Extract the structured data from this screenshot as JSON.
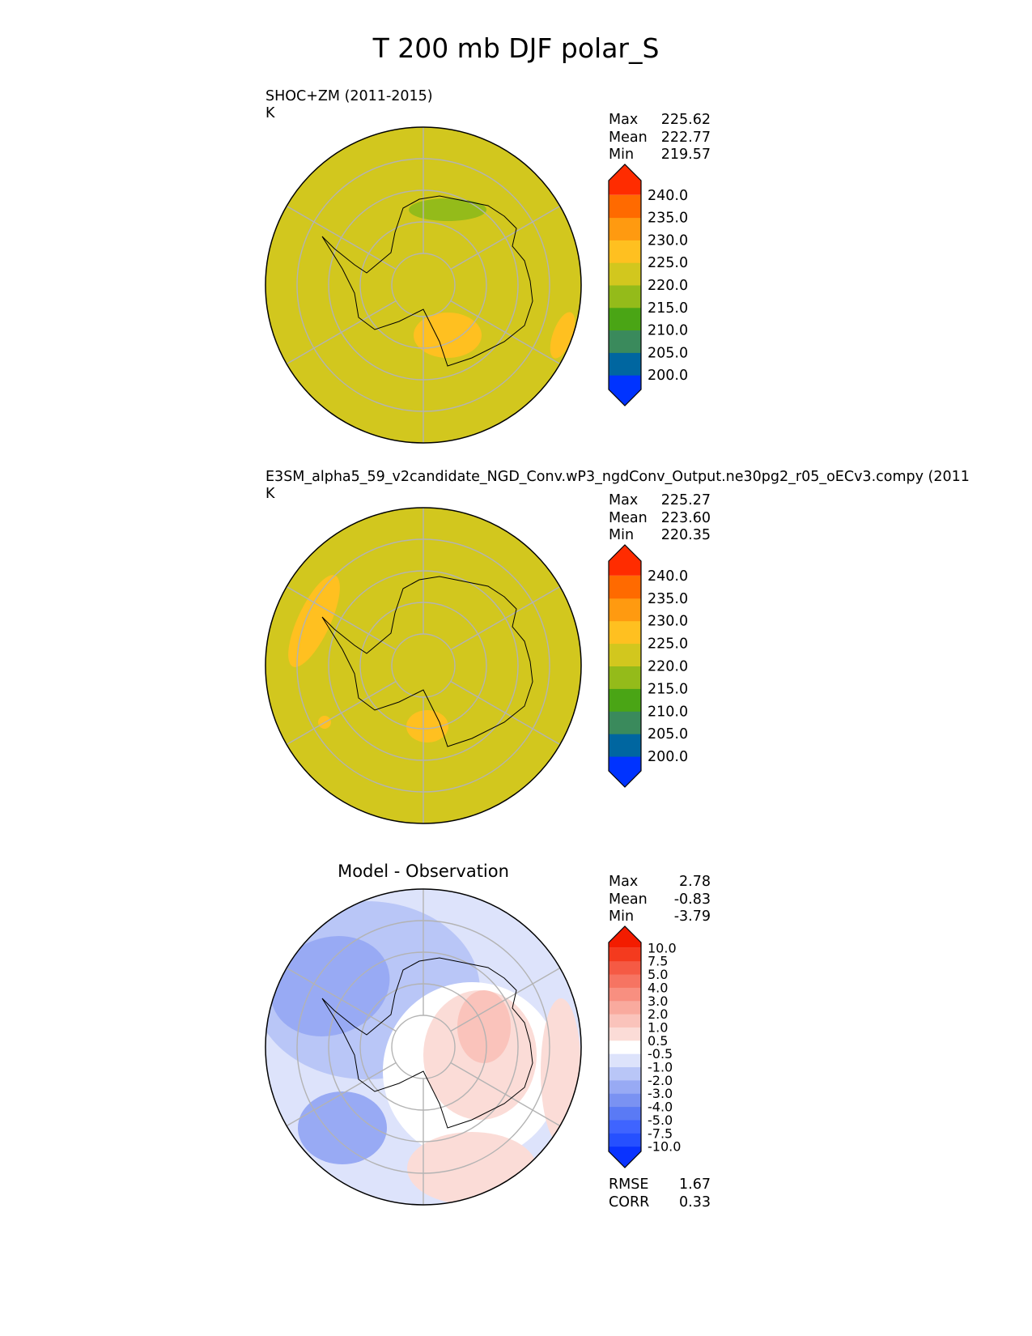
{
  "title": "T 200 mb DJF polar_S",
  "panels": [
    {
      "title_line1": "SHOC+ZM (2011-2015)",
      "units": "K",
      "stats": [
        {
          "label": "Max",
          "value": "225.62"
        },
        {
          "label": "Mean",
          "value": "222.77"
        },
        {
          "label": "Min",
          "value": "219.57"
        }
      ]
    },
    {
      "title_line1": "E3SM_alpha5_59_v2candidate_NGD_Conv.wP3_ngdConv_Output.ne30pg2_r05_oECv3.compy (2011",
      "units": "K",
      "stats": [
        {
          "label": "Max",
          "value": "225.27"
        },
        {
          "label": "Mean",
          "value": "223.60"
        },
        {
          "label": "Min",
          "value": "220.35"
        }
      ]
    },
    {
      "title_center": "Model - Observation",
      "stats": [
        {
          "label": "Max",
          "value": "2.78"
        },
        {
          "label": "Mean",
          "value": "-0.83"
        },
        {
          "label": "Min",
          "value": "-3.79"
        }
      ],
      "metrics": [
        {
          "label": "RMSE",
          "value": "1.67"
        },
        {
          "label": "CORR",
          "value": "0.33"
        }
      ]
    }
  ],
  "chart_data": [
    {
      "type": "heatmap",
      "title": "SHOC+ZM (2011-2015)",
      "units": "K",
      "projection": "polar_S",
      "colorbar": {
        "levels": [
          "200.0",
          "205.0",
          "210.0",
          "215.0",
          "220.0",
          "225.0",
          "230.0",
          "235.0",
          "240.0"
        ],
        "colors": [
          "#0033ff",
          "#0066a0",
          "#3a8a5c",
          "#4aa515",
          "#94bb1a",
          "#d2c71e",
          "#ffc020",
          "#ff9a10",
          "#ff6a00",
          "#ff2c00"
        ],
        "extend": "both"
      },
      "field_summary": {
        "background_level_range": [
          220,
          225
        ],
        "warm_region_range": [
          225,
          230
        ],
        "cool_region_range": [
          215,
          220
        ]
      }
    },
    {
      "type": "heatmap",
      "title": "E3SM_alpha5_59_v2candidate_NGD_Conv.wP3_ngdConv_Output.ne30pg2_r05_oECv3.compy (2011",
      "units": "K",
      "projection": "polar_S",
      "colorbar": {
        "levels": [
          "200.0",
          "205.0",
          "210.0",
          "215.0",
          "220.0",
          "225.0",
          "230.0",
          "235.0",
          "240.0"
        ],
        "colors": [
          "#0033ff",
          "#0066a0",
          "#3a8a5c",
          "#4aa515",
          "#94bb1a",
          "#d2c71e",
          "#ffc020",
          "#ff9a10",
          "#ff6a00",
          "#ff2c00"
        ],
        "extend": "both"
      },
      "field_summary": {
        "background_level_range": [
          220,
          225
        ],
        "warm_region_range": [
          225,
          230
        ]
      }
    },
    {
      "type": "heatmap",
      "title": "Model - Observation",
      "projection": "polar_S",
      "colorbar": {
        "levels": [
          "-10.0",
          "-7.5",
          "-5.0",
          "-4.0",
          "-3.0",
          "-2.0",
          "-1.0",
          "-0.5",
          "0.5",
          "1.0",
          "2.0",
          "3.0",
          "4.0",
          "5.0",
          "7.5",
          "10.0"
        ],
        "colors": [
          "#0a33ff",
          "#2650ff",
          "#3f64ff",
          "#5a7af5",
          "#7a92f2",
          "#98aaf4",
          "#b9c6f7",
          "#dde3fb",
          "#ffffff",
          "#fbdcd7",
          "#fac3bb",
          "#f9aa9e",
          "#f88f80",
          "#f67462",
          "#f55a44",
          "#f43a1e",
          "#f31c00"
        ],
        "extend": "both"
      },
      "field_summary": {
        "min": -3.79,
        "max": 2.78,
        "mean": -0.83
      }
    }
  ]
}
